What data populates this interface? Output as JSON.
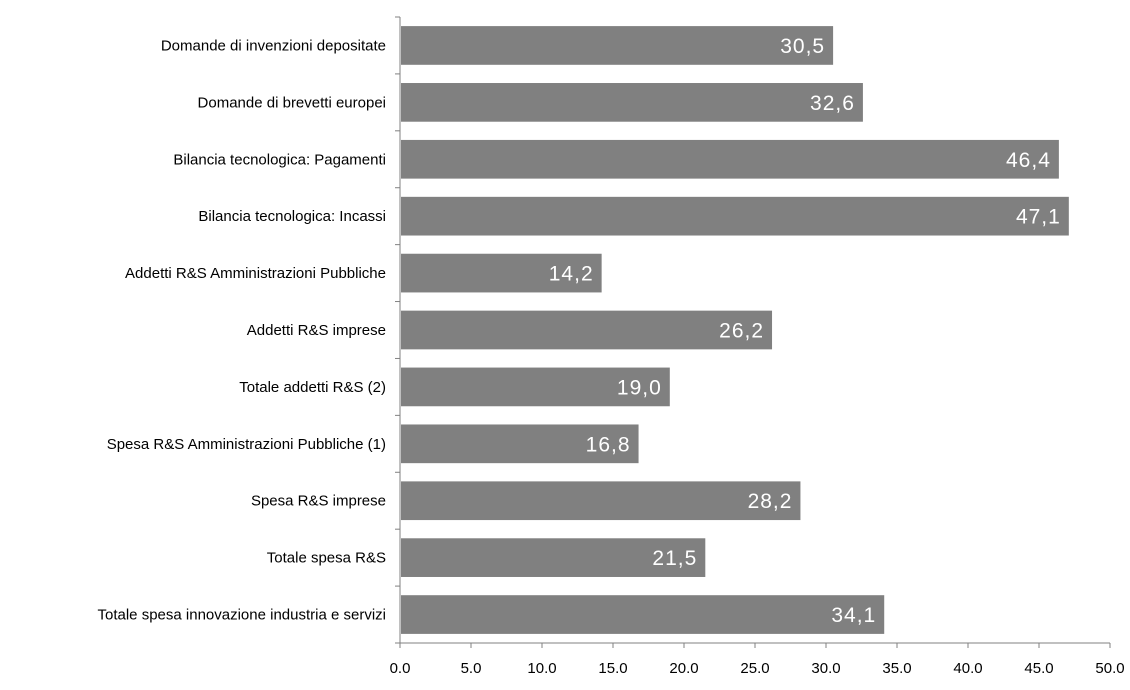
{
  "chart_data": {
    "type": "bar",
    "orientation": "horizontal",
    "categories": [
      "Domande di invenzioni depositate",
      "Domande di brevetti europei",
      "Bilancia tecnologica: Pagamenti",
      "Bilancia tecnologica: Incassi",
      "Addetti R&S Amministrazioni Pubbliche",
      "Addetti R&S imprese",
      "Totale addetti R&S (2)",
      "Spesa R&S Amministrazioni Pubbliche (1)",
      "Spesa R&S imprese",
      "Totale spesa R&S",
      "Totale spesa innovazione industria e servizi"
    ],
    "values": [
      30.5,
      32.6,
      46.4,
      47.1,
      14.2,
      26.2,
      19.0,
      16.8,
      28.2,
      21.5,
      34.1
    ],
    "data_labels": [
      "30,5",
      "32,6",
      "46,4",
      "47,1",
      "14,2",
      "26,2",
      "19,0",
      "16,8",
      "28,2",
      "21,5",
      "34,1"
    ],
    "xlim": [
      0,
      50
    ],
    "xticks": [
      "0.0",
      "5.0",
      "10.0",
      "15.0",
      "20.0",
      "25.0",
      "30.0",
      "35.0",
      "40.0",
      "45.0",
      "50.0"
    ],
    "grid": false,
    "legend": "none",
    "colors": {
      "bar": "#808080",
      "data_label": "#ffffff",
      "axis": "#808080"
    }
  }
}
